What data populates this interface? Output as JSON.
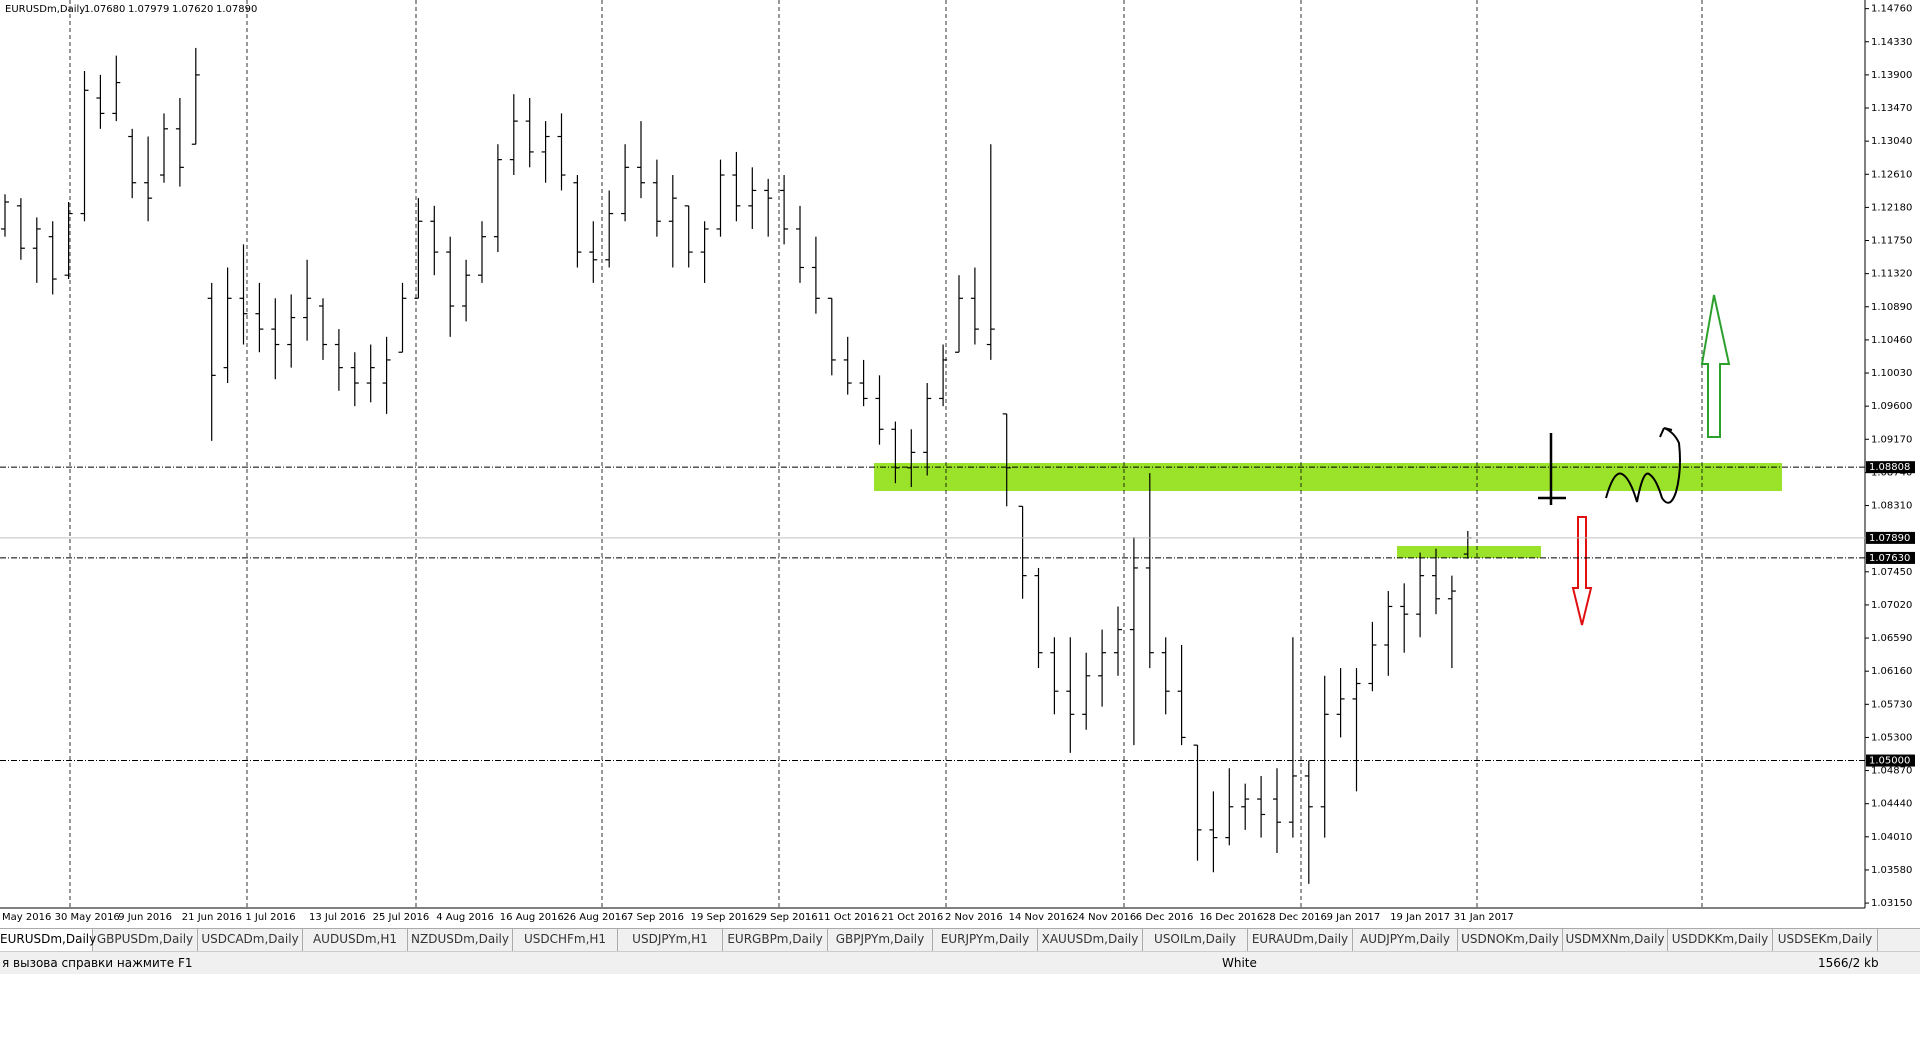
{
  "chart_data": {
    "type": "ohlc",
    "title": "EURUSDm,Daily",
    "ohlc_label": [
      "1.07680",
      "1.07979",
      "1.07620",
      "1.07890"
    ],
    "color": "#000000",
    "categories": [
      "May 2016",
      null,
      null,
      null,
      "30 May 2016",
      null,
      null,
      null,
      "9 Jun 2016",
      null,
      null,
      null,
      "21 Jun 2016",
      null,
      null,
      null,
      "1 Jul 2016",
      null,
      null,
      null,
      "13 Jul 2016",
      null,
      null,
      null,
      "25 Jul 2016",
      null,
      null,
      null,
      "4 Aug 2016",
      null,
      null,
      null,
      "16 Aug 2016",
      null,
      null,
      null,
      "26 Aug 2016",
      null,
      null,
      null,
      "7 Sep 2016",
      null,
      null,
      null,
      "19 Sep 2016",
      null,
      null,
      null,
      "29 Sep 2016",
      null,
      null,
      null,
      "11 Oct 2016",
      null,
      null,
      null,
      "21 Oct 2016",
      null,
      null,
      null,
      "2 Nov 2016",
      null,
      null,
      null,
      "14 Nov 2016",
      null,
      null,
      null,
      "24 Nov 2016",
      null,
      null,
      null,
      "6 Dec 2016",
      null,
      null,
      null,
      "16 Dec 2016",
      null,
      null,
      null,
      "28 Dec 2016",
      null,
      null,
      null,
      "9 Jan 2017",
      null,
      null,
      null,
      "19 Jan 2017",
      null,
      null,
      null,
      "31 Jan 2017"
    ],
    "open": [
      1.119,
      1.122,
      1.1165,
      1.118,
      1.113,
      1.121,
      1.136,
      1.134,
      1.131,
      1.125,
      1.126,
      1.132,
      1.13,
      1.11,
      1.101,
      1.11,
      1.108,
      1.106,
      1.104,
      1.1075,
      1.109,
      1.104,
      1.101,
      1.099,
      1.099,
      1.103,
      1.11,
      1.12,
      1.116,
      1.109,
      1.113,
      1.118,
      1.128,
      1.133,
      1.129,
      1.131,
      1.125,
      1.116,
      1.115,
      1.121,
      1.127,
      1.125,
      1.12,
      1.122,
      1.116,
      1.119,
      1.126,
      1.122,
      1.124,
      1.124,
      1.119,
      1.114,
      1.11,
      1.102,
      1.099,
      1.097,
      1.093,
      1.088,
      1.09,
      1.097,
      1.103,
      1.11,
      1.104,
      1.095,
      1.083,
      1.074,
      1.064,
      1.059,
      1.056,
      1.061,
      1.064,
      1.067,
      1.075,
      1.064,
      1.059,
      1.052,
      1.041,
      1.04,
      1.044,
      1.045,
      1.045,
      1.042,
      1.048,
      1.044,
      1.056,
      1.058,
      1.06,
      1.065,
      1.07,
      1.069,
      1.074,
      1.071,
      1.0768
    ],
    "high": [
      1.1235,
      1.123,
      1.1205,
      1.12,
      1.1225,
      1.1395,
      1.139,
      1.1415,
      1.132,
      1.131,
      1.134,
      1.136,
      1.1425,
      1.112,
      1.114,
      1.117,
      1.112,
      1.11,
      1.1105,
      1.115,
      1.11,
      1.106,
      1.103,
      1.104,
      1.105,
      1.112,
      1.123,
      1.122,
      1.118,
      1.115,
      1.12,
      1.13,
      1.1365,
      1.136,
      1.133,
      1.134,
      1.126,
      1.12,
      1.124,
      1.13,
      1.133,
      1.128,
      1.126,
      1.122,
      1.12,
      1.128,
      1.129,
      1.127,
      1.1255,
      1.126,
      1.122,
      1.118,
      1.11,
      1.105,
      1.102,
      1.1,
      1.094,
      1.093,
      1.099,
      1.104,
      1.113,
      1.114,
      1.13,
      1.095,
      1.083,
      1.075,
      1.066,
      1.066,
      1.064,
      1.067,
      1.07,
      1.079,
      1.0873,
      1.066,
      1.065,
      1.052,
      1.046,
      1.049,
      1.047,
      1.048,
      1.049,
      1.066,
      1.05,
      1.061,
      1.062,
      1.062,
      1.068,
      1.072,
      1.073,
      1.077,
      1.0775,
      1.074,
      1.07979
    ],
    "low": [
      1.118,
      1.115,
      1.112,
      1.1105,
      1.1125,
      1.12,
      1.132,
      1.133,
      1.123,
      1.12,
      1.125,
      1.1245,
      1.13,
      1.0915,
      1.099,
      1.104,
      1.103,
      1.0995,
      1.101,
      1.1045,
      1.102,
      1.098,
      1.096,
      1.0965,
      1.095,
      1.103,
      1.11,
      1.113,
      1.105,
      1.107,
      1.112,
      1.116,
      1.126,
      1.127,
      1.125,
      1.124,
      1.114,
      1.112,
      1.114,
      1.12,
      1.123,
      1.118,
      1.114,
      1.114,
      1.112,
      1.118,
      1.12,
      1.119,
      1.118,
      1.117,
      1.112,
      1.108,
      1.1,
      1.0975,
      1.096,
      1.091,
      1.086,
      1.0855,
      1.087,
      1.096,
      1.103,
      1.104,
      1.102,
      1.083,
      1.071,
      1.062,
      1.056,
      1.051,
      1.054,
      1.057,
      1.061,
      1.052,
      1.062,
      1.056,
      1.052,
      1.037,
      1.0355,
      1.039,
      1.041,
      1.04,
      1.038,
      1.04,
      1.034,
      1.04,
      1.053,
      1.046,
      1.059,
      1.061,
      1.064,
      1.066,
      1.069,
      1.062,
      1.0762
    ],
    "close": [
      1.1225,
      1.1165,
      1.119,
      1.1125,
      1.121,
      1.137,
      1.134,
      1.138,
      1.125,
      1.123,
      1.132,
      1.127,
      1.139,
      1.1,
      1.11,
      1.108,
      1.106,
      1.104,
      1.1075,
      1.11,
      1.104,
      1.101,
      1.099,
      1.101,
      1.102,
      1.11,
      1.12,
      1.116,
      1.109,
      1.113,
      1.118,
      1.128,
      1.133,
      1.129,
      1.131,
      1.126,
      1.116,
      1.115,
      1.121,
      1.127,
      1.125,
      1.12,
      1.123,
      1.116,
      1.119,
      1.126,
      1.122,
      1.124,
      1.123,
      1.119,
      1.114,
      1.11,
      1.102,
      1.099,
      1.097,
      1.093,
      1.088,
      1.09,
      1.097,
      1.102,
      1.11,
      1.106,
      1.106,
      1.088,
      1.074,
      1.064,
      1.059,
      1.056,
      1.061,
      1.064,
      1.067,
      1.075,
      1.064,
      1.059,
      1.053,
      1.041,
      1.04,
      1.044,
      1.045,
      1.043,
      1.042,
      1.048,
      1.044,
      1.056,
      1.058,
      1.06,
      1.065,
      1.07,
      1.069,
      1.074,
      1.071,
      1.072,
      1.0789
    ],
    "ylim": [
      1.03086,
      1.14872
    ],
    "yticks": [
      {
        "value": 1.1476,
        "label": "1.14760"
      },
      {
        "value": 1.1433,
        "label": "1.14330"
      },
      {
        "value": 1.139,
        "label": "1.13900"
      },
      {
        "value": 1.1347,
        "label": "1.13470"
      },
      {
        "value": 1.1304,
        "label": "1.13040"
      },
      {
        "value": 1.1261,
        "label": "1.12610"
      },
      {
        "value": 1.1218,
        "label": "1.12180"
      },
      {
        "value": 1.1175,
        "label": "1.11750"
      },
      {
        "value": 1.1132,
        "label": "1.11320"
      },
      {
        "value": 1.1089,
        "label": "1.10890"
      },
      {
        "value": 1.1046,
        "label": "1.10460"
      },
      {
        "value": 1.1003,
        "label": "1.10030"
      },
      {
        "value": 1.096,
        "label": "1.09600"
      },
      {
        "value": 1.0917,
        "label": "1.09170"
      },
      {
        "value": 1.0874,
        "label": "1.08740"
      },
      {
        "value": 1.0831,
        "label": "1.08310"
      },
      {
        "value": 1.0745,
        "label": "1.07450"
      },
      {
        "value": 1.0702,
        "label": "1.07020"
      },
      {
        "value": 1.0659,
        "label": "1.06590"
      },
      {
        "value": 1.0616,
        "label": "1.06160"
      },
      {
        "value": 1.0573,
        "label": "1.05730"
      },
      {
        "value": 1.053,
        "label": "1.05300"
      },
      {
        "value": 1.0487,
        "label": "1.04870"
      },
      {
        "value": 1.0444,
        "label": "1.04440"
      },
      {
        "value": 1.0401,
        "label": "1.04010"
      },
      {
        "value": 1.0358,
        "label": "1.03580"
      },
      {
        "value": 1.0315,
        "label": "1.03150"
      }
    ],
    "levels": [
      {
        "value": 1.08808,
        "label": "1.08808",
        "style": "dashdot"
      },
      {
        "value": 1.0789,
        "label": "1.07890",
        "style": "solid"
      },
      {
        "value": 1.0763,
        "label": "1.07630",
        "style": "dashdot"
      },
      {
        "value": 1.05,
        "label": "1.05000",
        "style": "dashdot"
      }
    ]
  },
  "tabs": [
    "EURUSDm,Daily",
    "GBPUSDm,Daily",
    "USDCADm,Daily",
    "AUDUSDm,H1",
    "NZDUSDm,Daily",
    "USDCHFm,H1",
    "USDJPYm,H1",
    "EURGBPm,Daily",
    "GBPJPYm,Daily",
    "EURJPYm,Daily",
    "XAUUSDm,Daily",
    "USOILm,Daily",
    "EURAUDm,Daily",
    "AUDJPYm,Daily",
    "USDNOKm,Daily",
    "USDMXNm,Daily",
    "USDDKKm,Daily",
    "USDSEKm,Daily"
  ],
  "status_bar": {
    "help": "я вызова справки нажмите F1",
    "profile": "White",
    "traffic": "1566/2 kb"
  }
}
